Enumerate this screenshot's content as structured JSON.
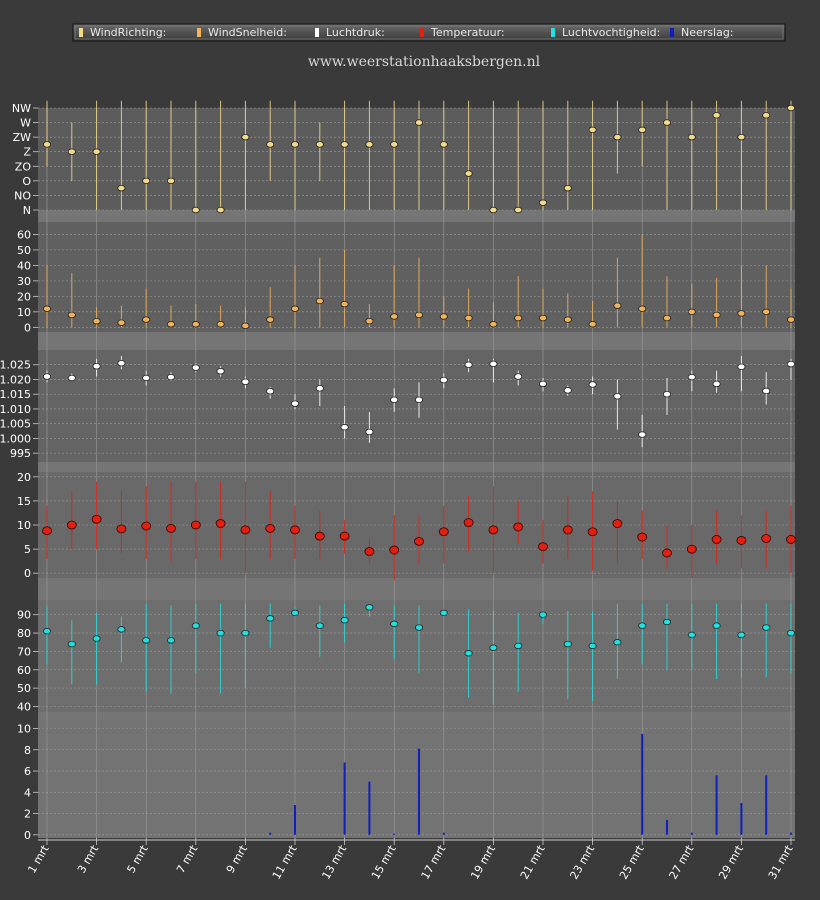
{
  "site_title": "www.weerstationhaaksbergen.nl",
  "legend": [
    {
      "label": "WindRichting:",
      "color": "#f3d98a"
    },
    {
      "label": "WindSnelheid:",
      "color": "#f0b35a"
    },
    {
      "label": "Luchtdruk:",
      "color": "#ffffff"
    },
    {
      "label": "Temperatuur:",
      "color": "#e02010"
    },
    {
      "label": "Luchtvochtigheid:",
      "color": "#20e0e0"
    },
    {
      "label": "Neerslag:",
      "color": "#1020c0"
    }
  ],
  "chart_data": [
    {
      "type": "scatter",
      "name": "WindRichting",
      "categorical_y": true,
      "y_tick_labels": [
        "N",
        "NO",
        "O",
        "ZO",
        "Z",
        "ZW",
        "W",
        "NW"
      ],
      "ylim": [
        0,
        7
      ],
      "color": "#f3d98a",
      "values": [
        4.5,
        4.0,
        4.0,
        1.5,
        2.0,
        2.0,
        0.0,
        0.0,
        5.0,
        4.5,
        4.5,
        4.5,
        4.5,
        4.5,
        4.5,
        6.0,
        4.5,
        2.5,
        0.0,
        0.0,
        0.5,
        1.5,
        5.5,
        5.0,
        5.5,
        6.0,
        5.0,
        6.5,
        5.0,
        6.5,
        7.0
      ],
      "low": [
        3,
        2,
        0,
        0,
        0,
        0,
        0,
        0,
        0,
        2,
        0,
        2,
        0,
        0,
        0,
        0,
        0,
        0,
        0,
        0,
        0,
        0,
        0,
        2.5,
        3,
        0,
        0,
        0,
        0,
        0,
        0
      ],
      "high": [
        7.5,
        6,
        7.5,
        7.5,
        7.5,
        7.5,
        7.5,
        7.5,
        7.5,
        7.5,
        7.5,
        6,
        7.5,
        7.5,
        7.5,
        7.5,
        7.5,
        7.5,
        7.5,
        7.5,
        7.5,
        7.5,
        7.5,
        7.5,
        7.5,
        7.5,
        7.5,
        7.5,
        7.5,
        7.5,
        7.5
      ]
    },
    {
      "type": "scatter",
      "name": "WindSnelheid",
      "y_ticks": [
        0,
        10,
        20,
        30,
        40,
        50,
        60
      ],
      "ylim": [
        -3,
        68
      ],
      "color": "#f0b35a",
      "values": [
        12,
        8,
        4,
        3,
        5,
        2,
        2,
        2,
        1,
        5,
        12,
        17,
        15,
        4,
        7,
        8,
        7,
        6,
        2,
        6,
        6,
        5,
        2,
        14,
        12,
        6,
        10,
        8,
        9,
        10,
        5
      ],
      "low": [
        0,
        0,
        0,
        0,
        0,
        0,
        0,
        0,
        0,
        0,
        0,
        0,
        0,
        0,
        0,
        0,
        0,
        0,
        0,
        0,
        0,
        0,
        0,
        0,
        0,
        0,
        0,
        0,
        0,
        0,
        0
      ],
      "high": [
        40,
        35,
        13,
        14,
        25,
        14,
        15,
        14,
        13,
        26,
        40,
        45,
        50,
        15,
        40,
        45,
        20,
        25,
        16,
        33,
        25,
        22,
        17,
        45,
        60,
        33,
        28,
        32,
        40,
        40,
        25
      ]
    },
    {
      "type": "scatter",
      "name": "Luchtdruk",
      "y_tick_labels": [
        "995",
        "1.000",
        "1.005",
        "1.010",
        "1.015",
        "1.020",
        "1.025"
      ],
      "y_ticks": [
        995,
        1000,
        1005,
        1010,
        1015,
        1020,
        1025
      ],
      "ylim": [
        992,
        1030
      ],
      "color": "#ffffff",
      "values": [
        1021,
        1020.5,
        1024.5,
        1025.5,
        1020.5,
        1020.8,
        1024,
        1022.8,
        1019.2,
        1016,
        1011.8,
        1017,
        1003.8,
        1002.2,
        1013.1,
        1013.1,
        1019.8,
        1025,
        1025.3,
        1021,
        1018.5,
        1016.3,
        1018.3,
        1014.3,
        1001.3,
        1015,
        1020.8,
        1018.5,
        1024.3,
        1016.1,
        1025.2
      ],
      "low": [
        1019,
        1019.5,
        1021,
        1023.5,
        1018,
        1019.5,
        1022.5,
        1021,
        1017,
        1013.5,
        1010,
        1011,
        1000,
        998.5,
        1009,
        1007,
        1017,
        1022.5,
        1019,
        1018,
        1016,
        1014.5,
        1015,
        1003,
        997,
        1008,
        1016,
        1015.5,
        1016,
        1011.5,
        1020
      ],
      "high": [
        1023,
        1022,
        1027,
        1028,
        1023,
        1022.5,
        1025.5,
        1024.5,
        1021,
        1017.5,
        1015,
        1020,
        1011,
        1009,
        1017,
        1019,
        1022,
        1027,
        1027,
        1023,
        1020.5,
        1018,
        1021,
        1020,
        1008,
        1020.5,
        1023,
        1023,
        1028,
        1022.5,
        1027
      ]
    },
    {
      "type": "scatter",
      "name": "Temperatuur",
      "y_ticks": [
        0,
        5,
        10,
        15,
        20
      ],
      "ylim": [
        -1,
        21
      ],
      "color": "#e02010",
      "values": [
        8.8,
        10,
        11.2,
        9.2,
        9.8,
        9.3,
        10,
        10.3,
        9,
        9.3,
        9,
        7.7,
        7.7,
        4.5,
        4.8,
        6.6,
        8.6,
        10.5,
        9,
        9.6,
        5.5,
        9,
        8.6,
        10.3,
        7.5,
        4.2,
        5,
        7,
        6.8,
        7.2,
        7
      ],
      "low": [
        3,
        5,
        5,
        4,
        3,
        2.5,
        3,
        3,
        0,
        3,
        3,
        3,
        4,
        2,
        -1.5,
        2,
        2,
        4.5,
        0,
        6,
        2,
        3,
        0.5,
        2,
        3,
        1,
        -1,
        2,
        1,
        1,
        0
      ],
      "high": [
        14,
        17,
        19,
        17,
        18,
        19,
        19,
        19,
        19,
        17,
        14,
        13,
        11,
        7,
        12,
        12,
        14,
        16,
        18,
        15,
        11,
        16,
        17,
        15,
        13,
        10,
        10,
        13,
        12,
        13,
        14
      ]
    },
    {
      "type": "scatter",
      "name": "Luchtvochtigheid",
      "y_ticks": [
        40,
        50,
        60,
        70,
        80,
        90
      ],
      "ylim": [
        37,
        98
      ],
      "color": "#20e0e0",
      "values": [
        81,
        74,
        77,
        82,
        76,
        76,
        84,
        80,
        80,
        88,
        91,
        84,
        87,
        94,
        85,
        83,
        91,
        69,
        72,
        73,
        90,
        74,
        73,
        75,
        84,
        86,
        79,
        84,
        79,
        83,
        80
      ],
      "low": [
        63,
        52,
        52,
        64,
        48,
        47,
        58,
        47,
        50,
        72,
        90,
        67,
        75,
        89,
        66,
        58,
        90,
        45,
        41,
        48,
        85,
        44,
        43,
        55,
        63,
        60,
        60,
        55,
        56,
        56,
        58
      ],
      "high": [
        95,
        87,
        91,
        89,
        96,
        95,
        96,
        96,
        96,
        96,
        94,
        95,
        96,
        96,
        95,
        95,
        93,
        93,
        92,
        91,
        92,
        92,
        92,
        96,
        96,
        96,
        96,
        96,
        96,
        96,
        96
      ]
    },
    {
      "type": "bar",
      "name": "Neerslag",
      "y_ticks": [
        0,
        2,
        4,
        6,
        8,
        10
      ],
      "ylim": [
        -0.3,
        10.8
      ],
      "color": "#1020c0",
      "values": [
        0,
        0,
        0,
        0,
        0,
        0,
        0,
        0,
        0,
        0.2,
        2.8,
        0,
        6.8,
        5,
        0.1,
        8.1,
        0.2,
        0,
        0,
        0,
        0,
        0,
        0,
        0,
        9.5,
        1.4,
        0.2,
        5.6,
        3,
        5.6,
        0.2
      ]
    }
  ],
  "x_axis": {
    "tick_labels": [
      "1 mrt",
      "3 mrt",
      "5 mrt",
      "7 mrt",
      "9 mrt",
      "11 mrt",
      "13 mrt",
      "15 mrt",
      "17 mrt",
      "19 mrt",
      "21 mrt",
      "23 mrt",
      "25 mrt",
      "27 mrt",
      "29 mrt",
      "31 mrt"
    ]
  }
}
